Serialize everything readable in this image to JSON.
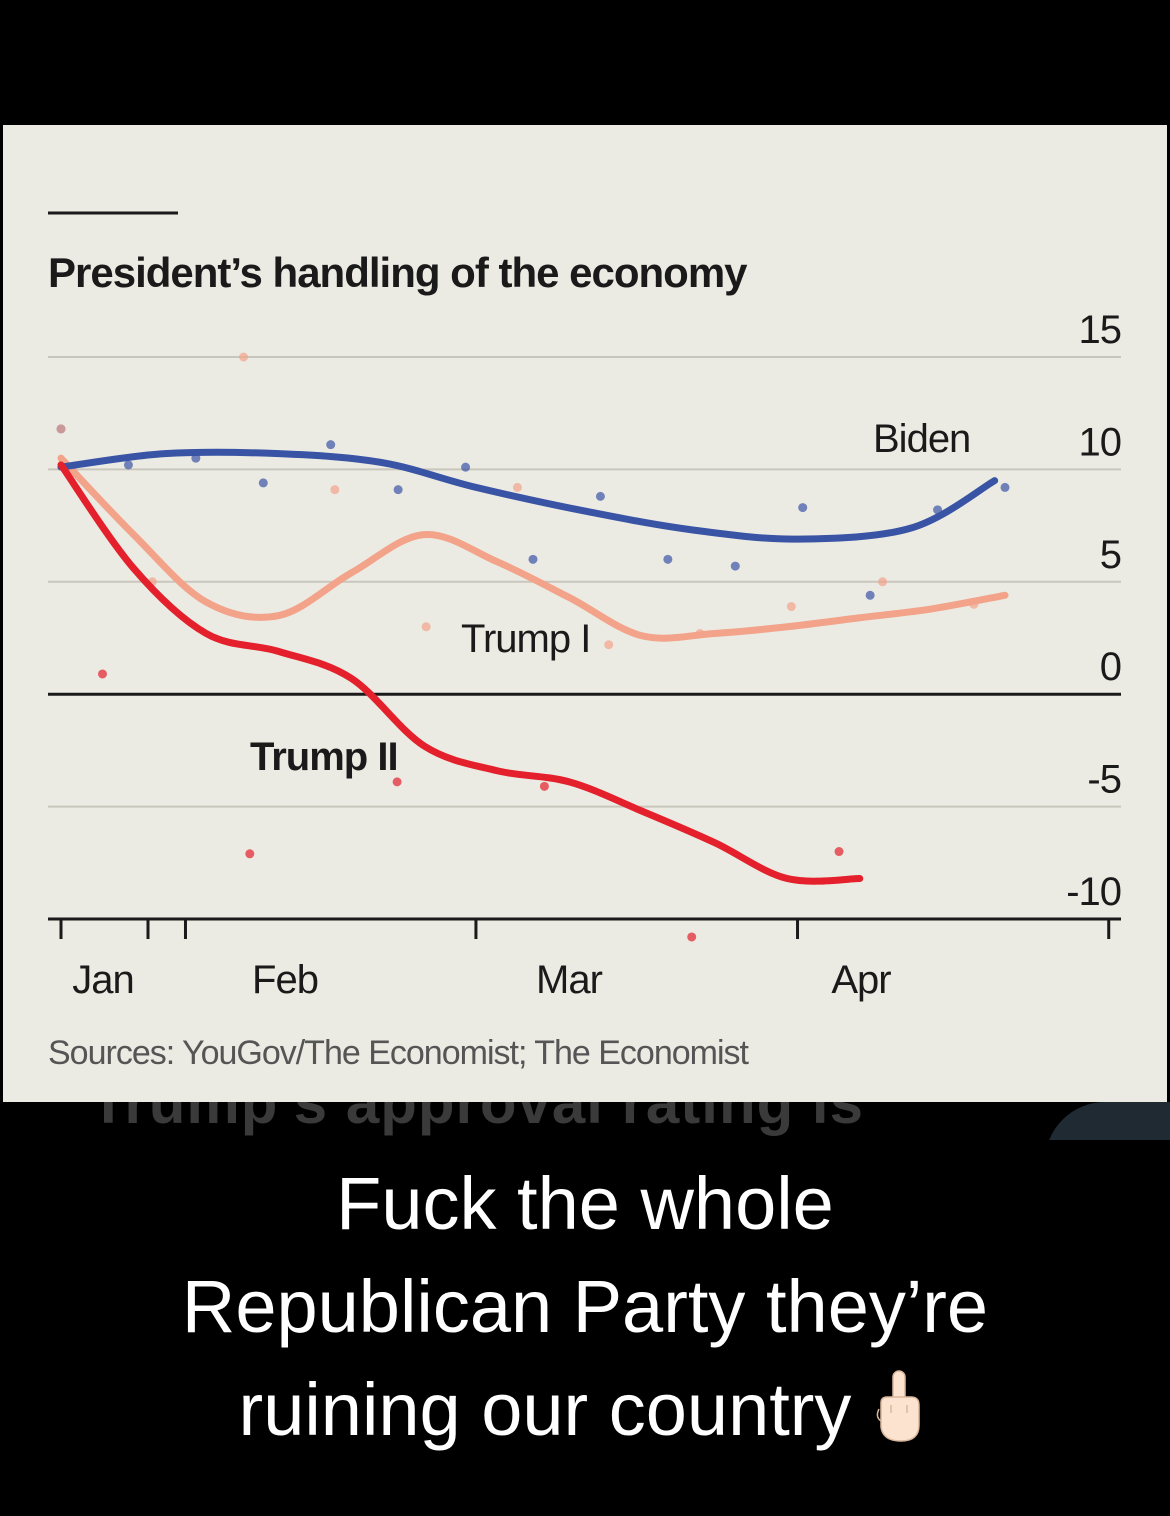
{
  "chart_data": {
    "type": "line",
    "title": "President’s handling of the economy",
    "source": "Sources: YouGov/The Economist; The Economist",
    "x_ticks": [
      "Jan",
      "Feb",
      "Mar",
      "Apr"
    ],
    "ylim": [
      -10,
      15
    ],
    "y_ticks": [
      15,
      10,
      5,
      0,
      -5,
      -10
    ],
    "y_tick_labels": [
      "15",
      "10",
      "5",
      "0",
      "-5",
      "-10"
    ],
    "series": [
      {
        "name": "Biden",
        "color": "#3a54a5",
        "x": [
          "Jan 20",
          "Jan 30",
          "Feb 10",
          "Feb 20",
          "Mar 1",
          "Mar 12",
          "Mar 22",
          "Apr 1",
          "Apr 12",
          "Apr 20"
        ],
        "values": [
          10.1,
          10.7,
          10.7,
          10.3,
          9.2,
          8.1,
          7.3,
          6.9,
          7.4,
          9.5
        ],
        "points": [
          [
            11.8,
            10.2,
            10.5,
            9.4,
            11.1,
            9.1,
            10.1,
            6.0,
            8.8,
            6.0,
            5.7,
            8.3,
            4.4,
            8.2,
            9.2
          ]
        ]
      },
      {
        "name": "Trump I",
        "color": "#f2a38a",
        "x": [
          "Jan 20",
          "Jan 27",
          "Feb 3",
          "Feb 10",
          "Feb 17",
          "Feb 24",
          "Mar 3",
          "Mar 10",
          "Mar 17",
          "Mar 24",
          "Mar 31",
          "Apr 7",
          "Apr 14",
          "Apr 21"
        ],
        "values": [
          10.5,
          7.1,
          4.1,
          3.5,
          5.4,
          7.1,
          5.9,
          4.3,
          2.6,
          2.7,
          3.0,
          3.4,
          3.8,
          4.4
        ],
        "points": [
          [
            11.8,
            5.0,
            15.0,
            9.1,
            3.0,
            9.2,
            2.2,
            2.7,
            3.9,
            5.0,
            4.0
          ]
        ]
      },
      {
        "name": "Trump II",
        "color": "#e3202b",
        "x": [
          "Jan 20",
          "Jan 27",
          "Feb 3",
          "Feb 10",
          "Feb 17",
          "Feb 24",
          "Mar 3",
          "Mar 10",
          "Mar 17",
          "Mar 24",
          "Mar 31",
          "Apr 7"
        ],
        "values": [
          10.2,
          5.6,
          2.7,
          1.9,
          0.7,
          -2.3,
          -3.4,
          -3.9,
          -5.2,
          -6.6,
          -8.2,
          -8.2
        ],
        "points": [
          [
            0.9,
            -7.1,
            -3.9,
            -4.1,
            -10.8,
            -7.0
          ]
        ]
      }
    ],
    "legend": "inline labels",
    "grid": true
  },
  "caption": {
    "lines": [
      "Fuck the whole",
      "Republican Party they’re",
      "ruining our country"
    ],
    "emoji_icon": "middle-finger-hand-icon"
  },
  "background_overlay_text": "Trump’s approval rating is"
}
